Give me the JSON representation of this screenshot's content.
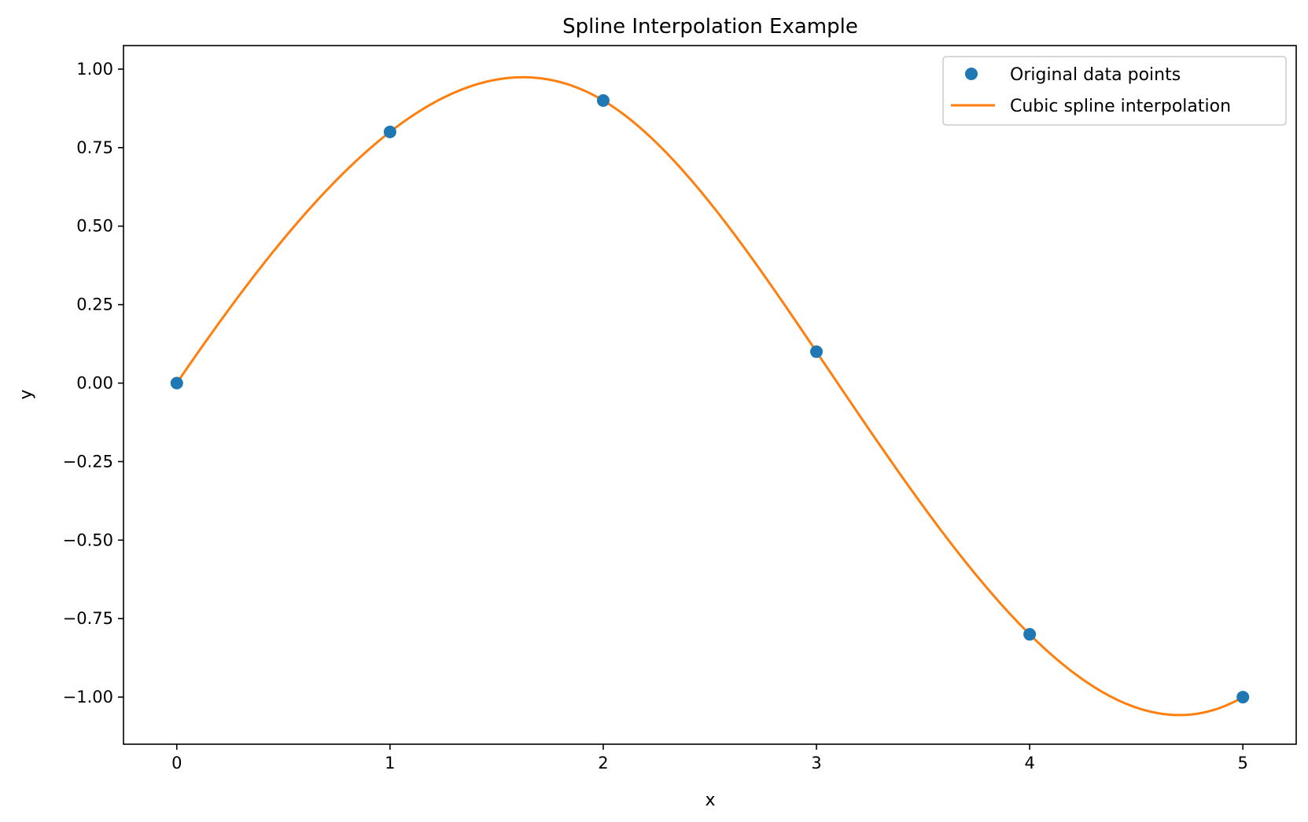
{
  "chart_data": {
    "type": "line",
    "title": "Spline Interpolation Example",
    "xlabel": "x",
    "ylabel": "y",
    "xlim": [
      -0.25,
      5.25
    ],
    "ylim": [
      -1.15,
      1.075
    ],
    "xticks": [
      0,
      1,
      2,
      3,
      4,
      5
    ],
    "xtick_labels": [
      "0",
      "1",
      "2",
      "3",
      "4",
      "5"
    ],
    "yticks": [
      1.0,
      0.75,
      0.5,
      0.25,
      0.0,
      -0.25,
      -0.5,
      -0.75,
      -1.0
    ],
    "ytick_labels": [
      "1.00",
      "0.75",
      "0.50",
      "0.25",
      "0.00",
      "−0.25",
      "−0.50",
      "−0.75",
      "−1.00"
    ],
    "grid": false,
    "legend_position": "top-right",
    "series": [
      {
        "name": "Original data points",
        "kind": "scatter",
        "color": "#1f77b4",
        "x": [
          0,
          1,
          2,
          3,
          4,
          5
        ],
        "y": [
          0.0,
          0.8,
          0.9,
          0.1,
          -0.8,
          -1.0
        ]
      },
      {
        "name": "Cubic spline interpolation",
        "kind": "line",
        "color": "#ff7f0e",
        "x": [
          0,
          1,
          2,
          3,
          4,
          5
        ],
        "y": [
          0.0,
          0.8,
          0.9,
          0.1,
          -0.8,
          -1.0
        ],
        "method": "not-a-knot cubic spline through points"
      }
    ]
  }
}
